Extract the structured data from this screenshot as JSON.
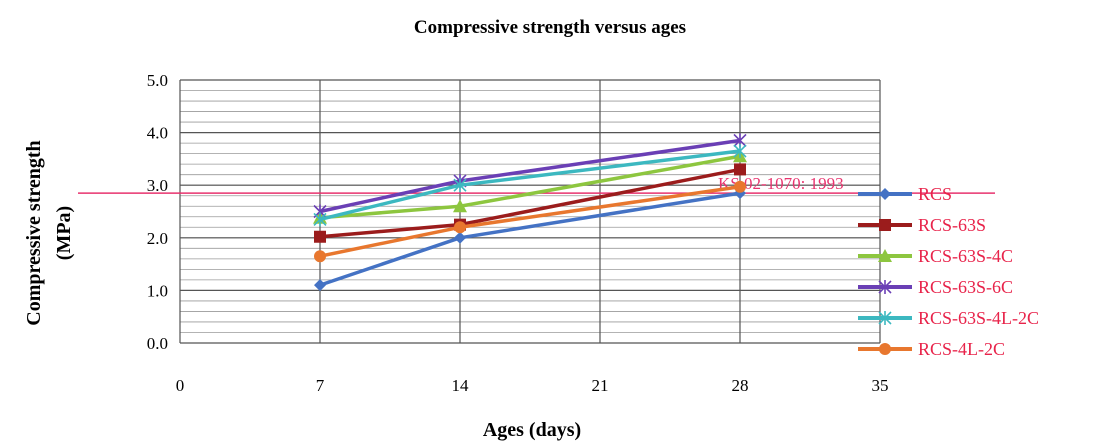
{
  "chart_data": {
    "type": "line",
    "title": "Compressive strength versus ages",
    "xlabel": "Ages (days)",
    "ylabel_lines": [
      "Compressive strength",
      "(MPa)"
    ],
    "x_ticks": [
      0,
      7,
      14,
      21,
      28,
      35
    ],
    "x_tick_labels": [
      "0",
      "7",
      "14",
      "21",
      "28",
      "35"
    ],
    "y_ticks": [
      0,
      1,
      2,
      3,
      4,
      5
    ],
    "y_tick_labels": [
      "0.0",
      "1.0",
      "2.0",
      "3.0",
      "4.0",
      "5.0"
    ],
    "xlim": [
      0,
      35
    ],
    "ylim": [
      0,
      5
    ],
    "grid": true,
    "legend_position": "right",
    "x": [
      7,
      14,
      28
    ],
    "series": [
      {
        "name": "RCS",
        "values": [
          1.1,
          2.0,
          2.85
        ],
        "color": "#4472C4",
        "marker": "diamond"
      },
      {
        "name": "RCS-63S",
        "values": [
          2.02,
          2.25,
          3.3
        ],
        "color": "#9B1C1C",
        "marker": "square"
      },
      {
        "name": "RCS-63S-4C",
        "values": [
          2.38,
          2.6,
          3.55
        ],
        "color": "#8DC63F",
        "marker": "triangle"
      },
      {
        "name": "RCS-63S-6C",
        "values": [
          2.5,
          3.08,
          3.85
        ],
        "color": "#6A3FB5",
        "marker": "star"
      },
      {
        "name": "RCS-63S-4L-2C",
        "values": [
          2.35,
          3.0,
          3.65
        ],
        "color": "#3CB8C0",
        "marker": "star"
      },
      {
        "name": "RCS-4L-2C",
        "values": [
          1.65,
          2.2,
          2.97
        ],
        "color": "#E8772E",
        "marker": "circle"
      }
    ],
    "reference_line": {
      "label": "KS 02-1070: 1993",
      "value": 2.85,
      "color": "#E8336E"
    }
  }
}
